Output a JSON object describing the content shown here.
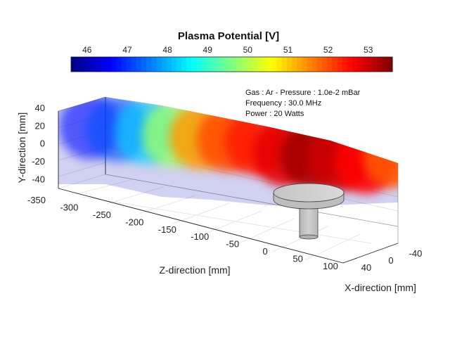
{
  "chart_data": {
    "type": "heatmap",
    "title": "Plasma Potential [V]",
    "colorbar": {
      "colormap": "jet",
      "range": [
        45.6,
        53.6
      ],
      "ticks": [
        46,
        47,
        48,
        49,
        50,
        51,
        52,
        53
      ],
      "placement": "top"
    },
    "annotations": [
      "Gas : Ar - Pressure : 1.0e-2 mBar",
      "Frequency : 30.0 MHz",
      "Power : 20 Watts"
    ],
    "xlabel": "X-direction [mm]",
    "ylabel": "Y-direction [mm]",
    "zlabel": "Z-direction [mm]",
    "xlim": [
      -40,
      40
    ],
    "ylim": [
      -50,
      40
    ],
    "zlim": [
      -350,
      100
    ],
    "xticks": [
      40,
      0,
      -40
    ],
    "yticks": [
      40,
      20,
      0,
      -20,
      -40
    ],
    "zticks": [
      -350,
      -300,
      -250,
      -200,
      -150,
      -100,
      -50,
      0,
      50,
      100
    ],
    "grid": true,
    "surface_profile": {
      "z": [
        -340,
        -300,
        -260,
        -220,
        -180,
        -140,
        -100,
        -60,
        -20,
        20,
        60,
        100
      ],
      "potential": [
        46.7,
        47.2,
        48.2,
        49.8,
        51.4,
        52.0,
        52.4,
        52.8,
        53.3,
        53.0,
        52.6,
        51.9
      ]
    }
  }
}
